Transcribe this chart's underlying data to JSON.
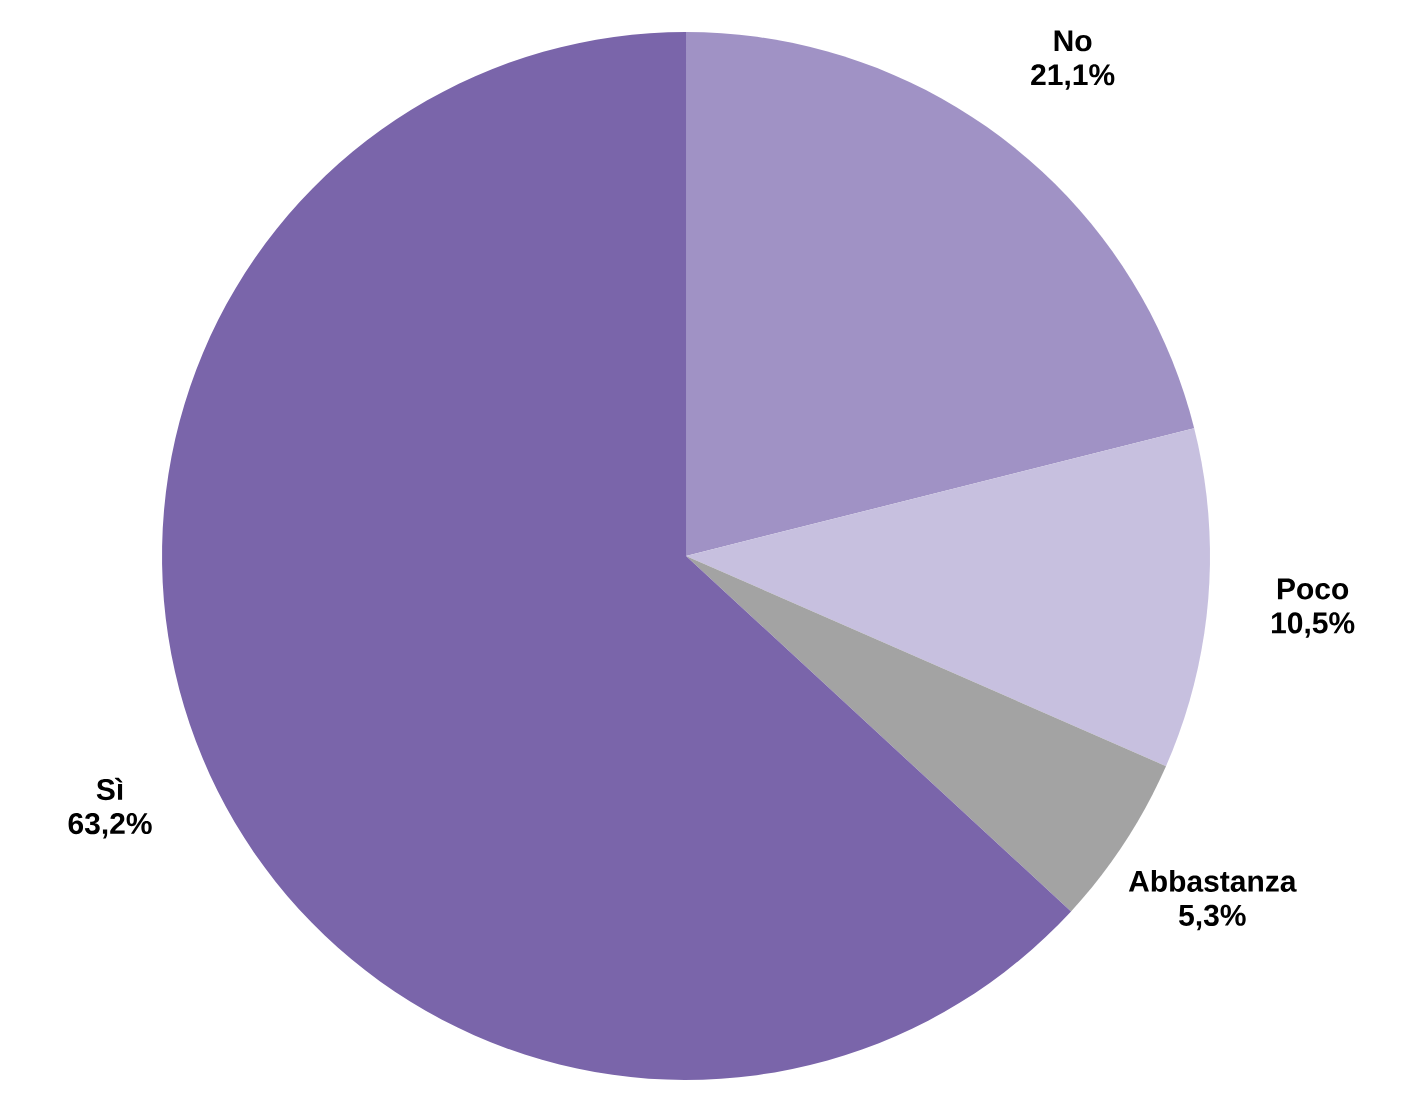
{
  "chart_data": {
    "type": "pie",
    "categories": [
      "No",
      "Poco",
      "Abbastanza",
      "Sì"
    ],
    "values": [
      21.1,
      10.5,
      5.3,
      63.2
    ],
    "colors": [
      "#a092c5",
      "#c7c0df",
      "#a3a3a3",
      "#7a65aa"
    ],
    "value_labels": [
      "21,1%",
      "10,5%",
      "5,3%",
      "63,2%"
    ]
  }
}
